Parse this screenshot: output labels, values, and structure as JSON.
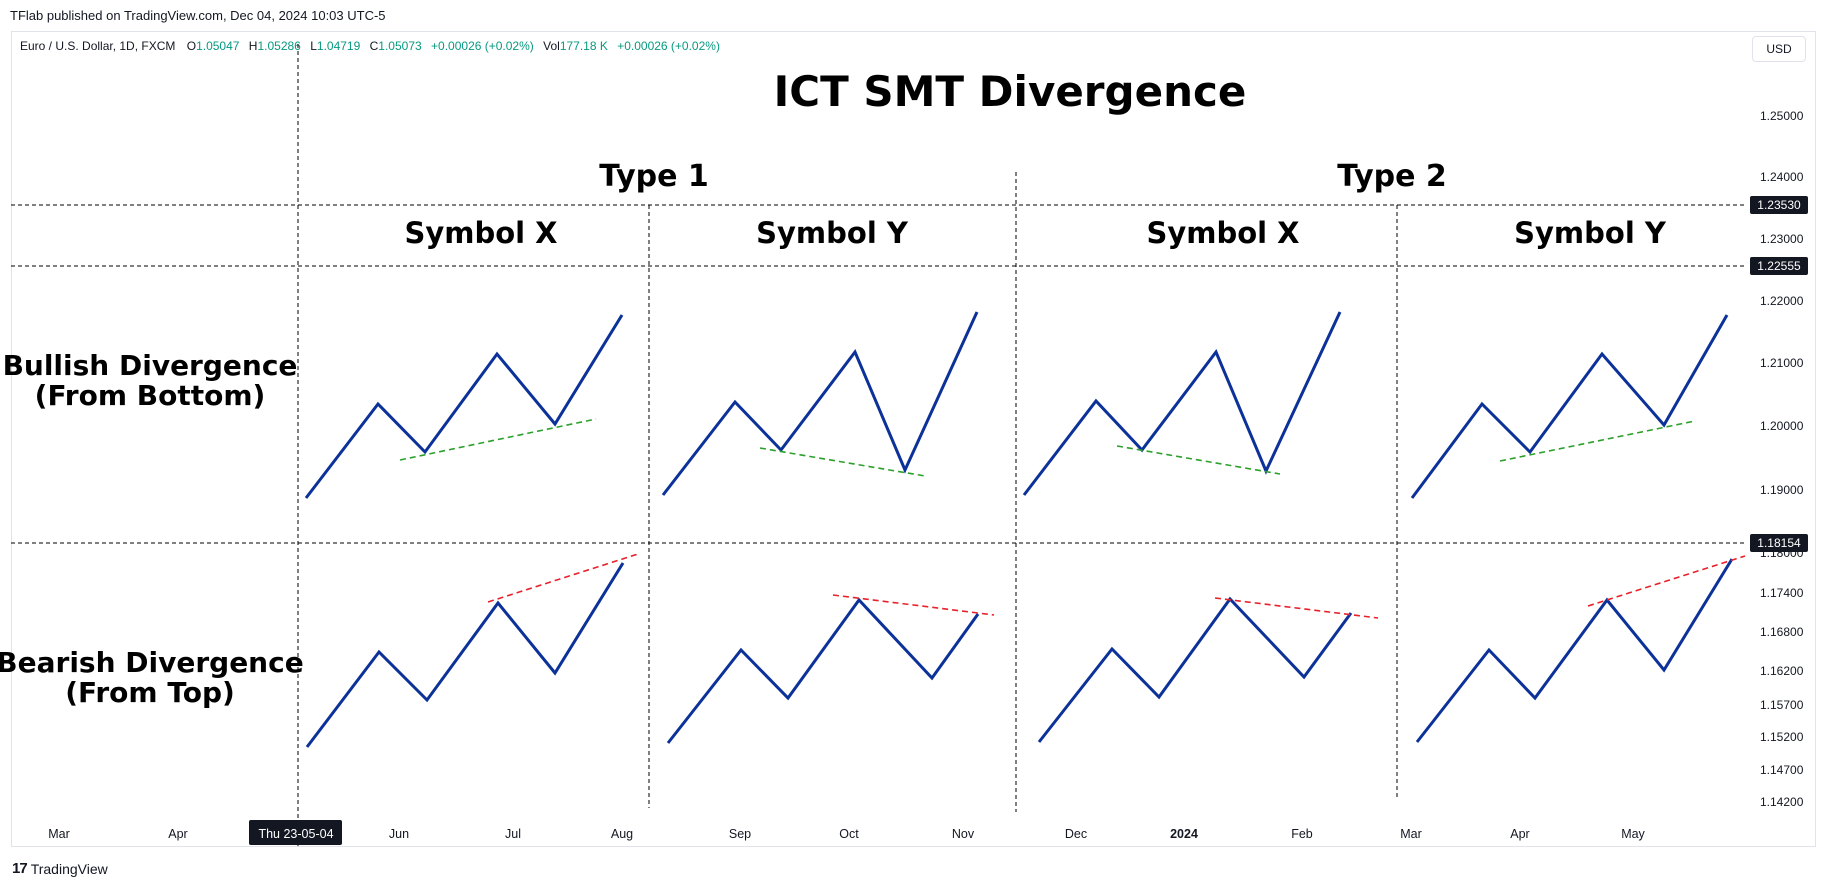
{
  "header": {
    "caption": "TFlab published on TradingView.com, Dec 04, 2024 10:03 UTC-5"
  },
  "legend": {
    "symbol": "Euro / U.S. Dollar, 1D, FXCM",
    "o_label": "O",
    "o_value": "1.05047",
    "h_label": "H",
    "h_value": "1.05286",
    "l_label": "L",
    "l_value": "1.04719",
    "c_label": "C",
    "c_value": "1.05073",
    "change": "+0.00026 (+0.02%)",
    "vol_label": "Vol",
    "vol_value": "177.18 K",
    "vol_change": "+0.00026 (+0.02%)"
  },
  "currency": "USD",
  "brand": {
    "logo": "17",
    "name": "TradingView"
  },
  "colors": {
    "line": "#0c3299",
    "bull_dash": "#2ca02c",
    "bear_dash": "#e8212b",
    "positive": "#089981"
  },
  "chart_data": {
    "type": "line",
    "title": "ICT SMT Divergence",
    "group_headers": [
      "Type 1",
      "Type 2"
    ],
    "column_headers": [
      "Symbol X",
      "Symbol Y",
      "Symbol X",
      "Symbol Y"
    ],
    "row_headers": [
      "Bullish Divergence\n(From Bottom)",
      "Bearish Divergence\n(From Top)"
    ],
    "y_axis": {
      "ticks": [
        "1.25000",
        "1.24000",
        "1.23000",
        "1.22000",
        "1.21000",
        "1.20000",
        "1.19000",
        "1.18000",
        "1.17400",
        "1.16800",
        "1.16200",
        "1.15700",
        "1.15200",
        "1.14700",
        "1.14200"
      ],
      "price_labels": [
        "1.23530",
        "1.22555",
        "1.18154"
      ]
    },
    "x_axis": {
      "ticks": [
        "Mar",
        "Apr",
        "Jun",
        "Jul",
        "Aug",
        "Sep",
        "Oct",
        "Nov",
        "Dec",
        "2024",
        "Feb",
        "Mar",
        "Apr",
        "May"
      ],
      "cursor_label": "Thu 23-05-04"
    },
    "grid": false
  }
}
